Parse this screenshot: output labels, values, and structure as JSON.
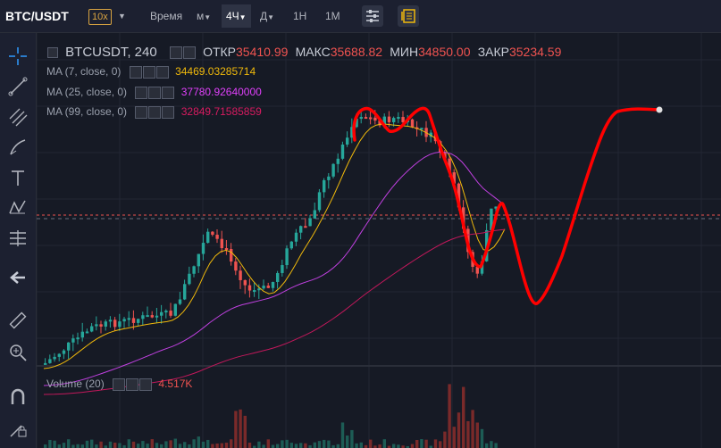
{
  "topbar": {
    "pair": "BTC/USDT",
    "leverage": "10x",
    "time_label": "Время",
    "intervals": [
      "м",
      "4Ч",
      "Д",
      "1Н",
      "1М"
    ],
    "active_interval": "4Ч"
  },
  "legend": {
    "symbol": "BTCUSDT, 240",
    "open_label": "ОТКР",
    "open": "35410.99",
    "high_label": "МАКС",
    "high": "35688.82",
    "low_label": "МИН",
    "low": "34850.00",
    "close_label": "ЗАКР",
    "close": "35234.59"
  },
  "ma": [
    {
      "label": "MA (7, close, 0)",
      "value": "34469.03285714",
      "color": "#f0b90b"
    },
    {
      "label": "MA (25, close, 0)",
      "value": "37780.92640000",
      "color": "#e040fb"
    },
    {
      "label": "MA (99, close, 0)",
      "value": "32849.71585859",
      "color": "#d81b60"
    }
  ],
  "volume": {
    "label": "Volume (20)",
    "value": "4.517K"
  },
  "colors": {
    "up": "#26a69a",
    "down": "#ef5350",
    "drawing": "#ff0000"
  }
}
